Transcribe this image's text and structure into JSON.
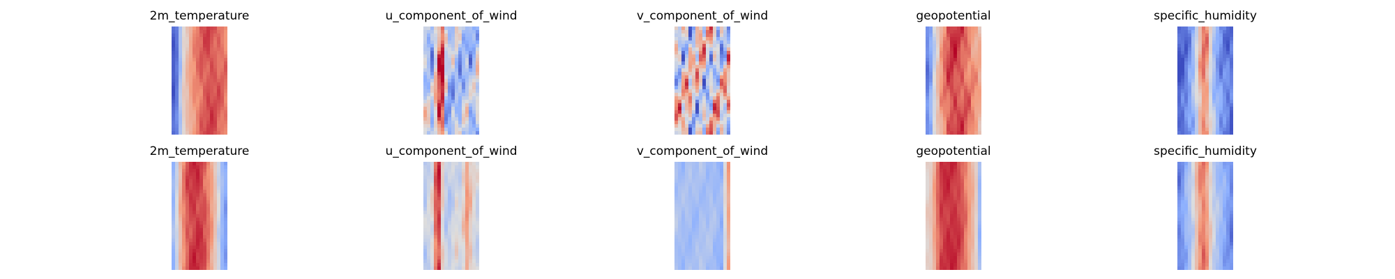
{
  "chart_data": {
    "type": "heatmap",
    "colormap": "coolwarm",
    "colormap_colors": [
      "#3b4cc0",
      "#8db0fe",
      "#dddddd",
      "#f49a7b",
      "#b40426"
    ],
    "axes_visible": false,
    "grid": false,
    "rows": [
      {
        "panels": [
          {
            "title": "2m_temperature",
            "column_profile": [
              0.05,
              0.12,
              0.35,
              0.55,
              0.62,
              0.7,
              0.76,
              0.8,
              0.84,
              0.86,
              0.88,
              0.88,
              0.86,
              0.84,
              0.82,
              0.8
            ],
            "variation": 0.08
          },
          {
            "title": "u_component_of_wind",
            "column_profile": [
              0.45,
              0.4,
              0.3,
              0.55,
              0.85,
              0.9,
              0.4,
              0.3,
              0.35,
              0.4,
              0.3,
              0.35,
              0.4,
              0.3,
              0.35,
              0.45
            ],
            "variation": 0.35
          },
          {
            "title": "v_component_of_wind",
            "column_profile": [
              0.55,
              0.5,
              0.5,
              0.55,
              0.5,
              0.45,
              0.5,
              0.55,
              0.5,
              0.45,
              0.5,
              0.55,
              0.5,
              0.45,
              0.5,
              0.55
            ],
            "variation": 0.6
          },
          {
            "title": "geopotential",
            "column_profile": [
              0.15,
              0.25,
              0.45,
              0.6,
              0.72,
              0.8,
              0.86,
              0.9,
              0.9,
              0.88,
              0.86,
              0.84,
              0.8,
              0.76,
              0.72,
              0.68
            ],
            "variation": 0.12
          },
          {
            "title": "specific_humidity",
            "column_profile": [
              0.05,
              0.08,
              0.12,
              0.2,
              0.3,
              0.45,
              0.65,
              0.78,
              0.72,
              0.5,
              0.35,
              0.25,
              0.18,
              0.15,
              0.12,
              0.1
            ],
            "variation": 0.15
          }
        ]
      },
      {
        "panels": [
          {
            "title": "2m_temperature",
            "column_profile": [
              0.3,
              0.45,
              0.65,
              0.78,
              0.86,
              0.9,
              0.92,
              0.92,
              0.9,
              0.86,
              0.8,
              0.72,
              0.6,
              0.45,
              0.3,
              0.22
            ],
            "variation": 0.08
          },
          {
            "title": "u_component_of_wind",
            "column_profile": [
              0.4,
              0.45,
              0.5,
              0.82,
              0.9,
              0.55,
              0.42,
              0.4,
              0.45,
              0.5,
              0.45,
              0.55,
              0.72,
              0.6,
              0.5,
              0.45
            ],
            "variation": 0.12
          },
          {
            "title": "v_component_of_wind",
            "column_profile": [
              0.35,
              0.33,
              0.32,
              0.34,
              0.33,
              0.32,
              0.33,
              0.35,
              0.34,
              0.33,
              0.35,
              0.32,
              0.3,
              0.28,
              0.5,
              0.7
            ],
            "variation": 0.08
          },
          {
            "title": "geopotential",
            "column_profile": [
              0.55,
              0.58,
              0.7,
              0.82,
              0.9,
              0.92,
              0.93,
              0.93,
              0.92,
              0.9,
              0.86,
              0.8,
              0.72,
              0.65,
              0.55,
              0.3
            ],
            "variation": 0.06
          },
          {
            "title": "specific_humidity",
            "column_profile": [
              0.15,
              0.2,
              0.28,
              0.35,
              0.45,
              0.62,
              0.75,
              0.8,
              0.72,
              0.55,
              0.42,
              0.35,
              0.3,
              0.25,
              0.2,
              0.15
            ],
            "variation": 0.1
          }
        ]
      }
    ]
  }
}
